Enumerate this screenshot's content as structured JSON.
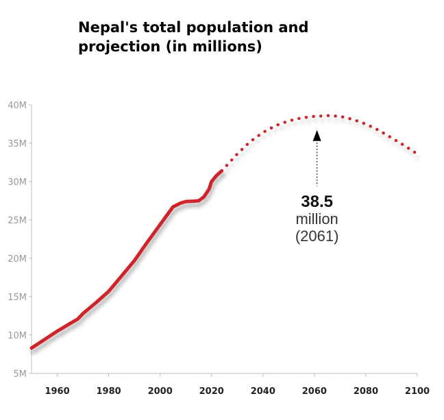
{
  "title_lines": [
    "Nepal's total population and",
    "projection (in millions)"
  ],
  "chart_data": {
    "type": "line",
    "title": "Nepal's total population and projection (in millions)",
    "xlabel": "",
    "ylabel": "",
    "xlim": [
      1950,
      2100
    ],
    "ylim": [
      5,
      40
    ],
    "x_ticks": [
      1960,
      1980,
      2000,
      2020,
      2040,
      2060,
      2080,
      2100
    ],
    "x_tick_labels": [
      "1960",
      "1980",
      "2000",
      "2020",
      "2040",
      "2060",
      "2080",
      "2100"
    ],
    "y_ticks": [
      5,
      10,
      15,
      20,
      25,
      30,
      35,
      40
    ],
    "y_tick_labels": [
      "5M",
      "10M",
      "15M",
      "20M",
      "25M",
      "30M",
      "35M",
      "40M"
    ],
    "grid": false,
    "colors": {
      "line": "#d0242b",
      "axis": "#bbbbbb",
      "arrow": "#000000"
    },
    "series": [
      {
        "style": "solid",
        "x": [
          1950,
          1955,
          1960,
          1965,
          1968,
          1970,
          1975,
          1980,
          1985,
          1990,
          1995,
          2000,
          2005,
          2008,
          2010,
          2013,
          2015,
          2017,
          2019,
          2020,
          2022,
          2024
        ],
        "y": [
          8.3,
          9.4,
          10.5,
          11.5,
          12.1,
          12.8,
          14.2,
          15.7,
          17.7,
          19.7,
          22.1,
          24.4,
          26.7,
          27.2,
          27.4,
          27.45,
          27.5,
          28.0,
          29.0,
          30.0,
          30.8,
          31.4
        ]
      },
      {
        "style": "dotted",
        "x": [
          2024,
          2030,
          2035,
          2040,
          2045,
          2050,
          2055,
          2060,
          2061,
          2065,
          2070,
          2075,
          2080,
          2085,
          2090,
          2095,
          2100
        ],
        "y": [
          31.4,
          33.6,
          35.2,
          36.4,
          37.3,
          37.9,
          38.3,
          38.5,
          38.5,
          38.6,
          38.5,
          38.1,
          37.5,
          36.7,
          35.7,
          34.7,
          33.6
        ]
      }
    ],
    "annotation": {
      "value": "38.5",
      "unit": "million",
      "year": "(2061)",
      "arrow_x": 2061,
      "arrow_y": 38.5
    }
  }
}
